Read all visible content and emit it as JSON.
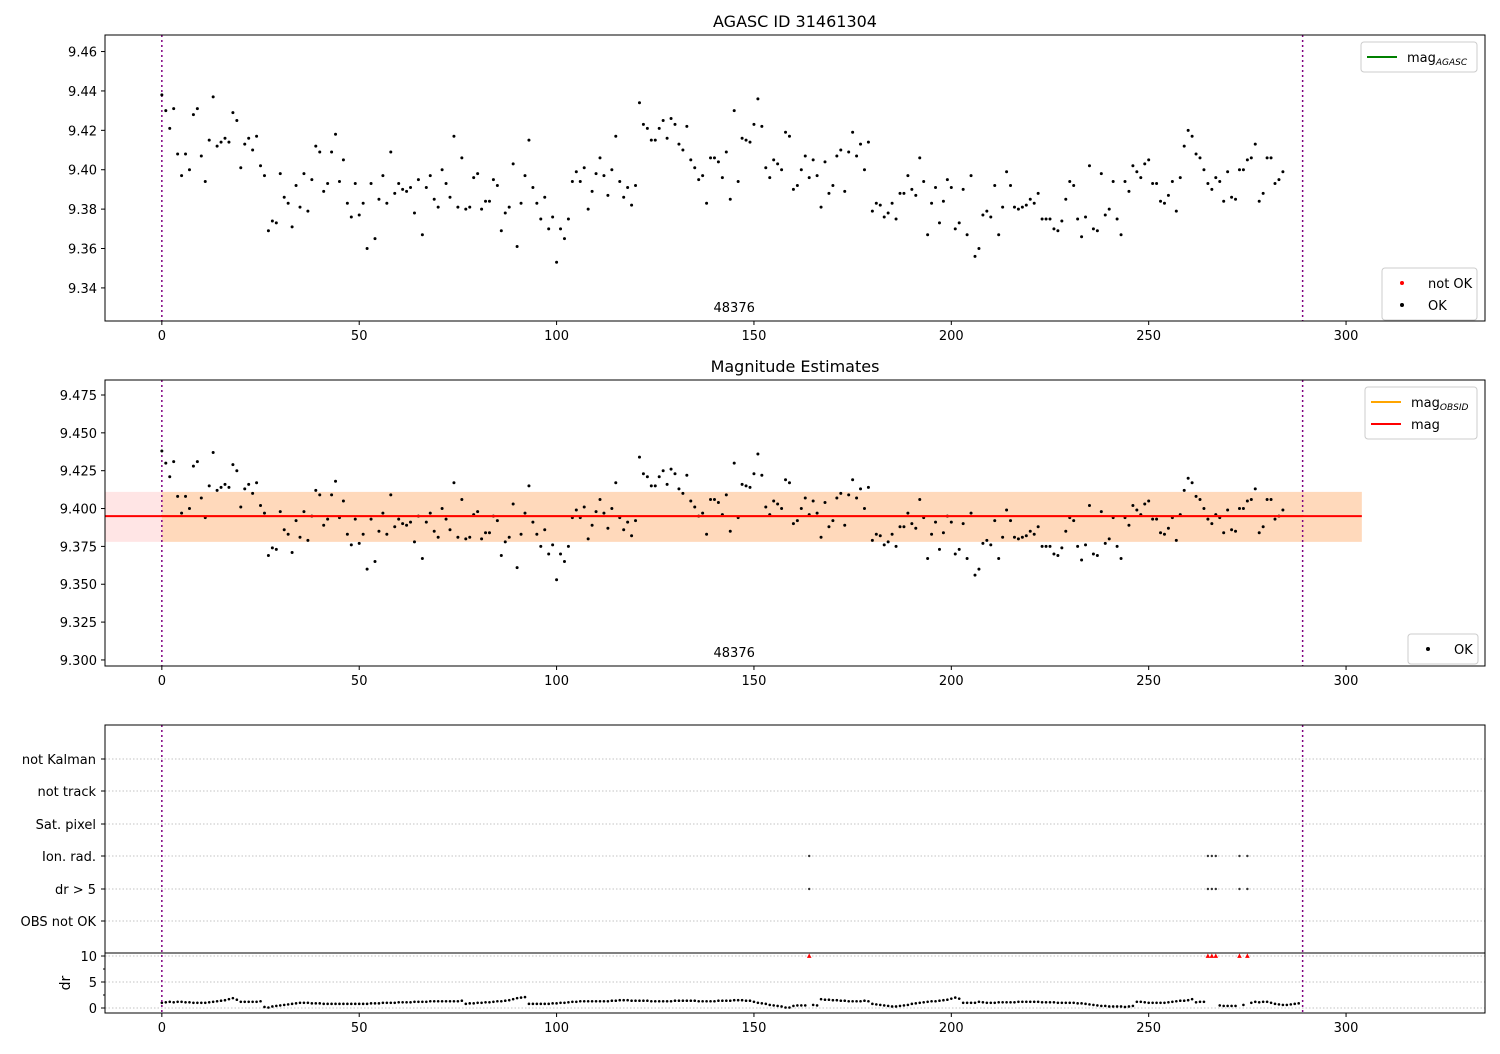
{
  "chart_data": [
    {
      "type": "scatter",
      "title": "AGASC ID 31461304",
      "xlim": [
        -14.4,
        335.2
      ],
      "ylim": [
        9.3232,
        9.4684
      ],
      "xticks": [
        0,
        50,
        100,
        150,
        200,
        250,
        300
      ],
      "yticks": [
        "9.34",
        "9.36",
        "9.38",
        "9.40",
        "9.42",
        "9.44",
        "9.46"
      ],
      "vlines": [
        0,
        289
      ],
      "annotation": "48376",
      "annotation_x": 145,
      "legend_upper": [
        {
          "label": "mag",
          "sub": "AGASC",
          "color": "#008000"
        }
      ],
      "legend_lower": [
        {
          "label": "not OK",
          "color": "#ff0000"
        },
        {
          "label": "OK",
          "color": "#000000"
        }
      ]
    },
    {
      "type": "scatter",
      "title": "Magnitude Estimates",
      "xlim": [
        -14.4,
        335.2
      ],
      "ylim": [
        9.296,
        9.4849
      ],
      "xticks": [
        0,
        50,
        100,
        150,
        200,
        250,
        300
      ],
      "yticks": [
        "9.300",
        "9.325",
        "9.350",
        "9.375",
        "9.400",
        "9.425",
        "9.450",
        "9.475"
      ],
      "mag": 9.395,
      "mag_obsid": 9.395,
      "band": [
        9.378,
        9.411
      ],
      "band_x": [
        -14.4,
        304
      ],
      "obsid_band_x": [
        0,
        304
      ],
      "annotation": "48376",
      "annotation_x": 145,
      "legend_upper": [
        {
          "label": "mag",
          "sub": "OBSID",
          "color": "#ffa500"
        },
        {
          "label": "mag",
          "sub": "",
          "color": "#ff0000"
        }
      ],
      "legend_lower": [
        {
          "label": "OK",
          "color": "#000000"
        }
      ]
    },
    {
      "type": "scatter",
      "categories": [
        "not Kalman",
        "not track",
        "Sat. pixel",
        "Ion. rad.",
        "dr > 5",
        "OBS not OK"
      ],
      "flags": {
        "Ion. rad.": [
          164,
          265,
          266,
          267,
          273,
          275
        ],
        "dr > 5": [
          164,
          265,
          266,
          267,
          273,
          275
        ]
      },
      "ylabel": "dr",
      "ylim": [
        -0.96,
        10.58
      ],
      "yticks": [
        "0",
        "5",
        "10"
      ],
      "xticks": [
        0,
        50,
        100,
        150,
        200,
        250,
        300
      ],
      "dr_clipped_x": [
        164,
        265,
        266,
        267,
        273,
        275
      ],
      "dr": [
        1.0,
        1.1,
        1.2,
        1.1,
        1.2,
        1.2,
        1.1,
        1.1,
        1.0,
        1.0,
        1.0,
        1.0,
        1.1,
        1.2,
        1.3,
        1.4,
        1.5,
        1.7,
        1.9,
        1.6,
        1.2,
        1.2,
        1.2,
        1.2,
        1.2,
        1.3,
        0.2,
        0.1,
        0.3,
        0.4,
        0.5,
        0.6,
        0.7,
        0.8,
        0.9,
        1.0,
        1.0,
        1.0,
        0.9,
        0.9,
        0.9,
        0.8,
        0.8,
        0.8,
        0.8,
        0.8,
        0.8,
        0.8,
        0.8,
        0.8,
        0.8,
        0.8,
        0.8,
        0.9,
        0.9,
        0.9,
        1.0,
        1.0,
        1.0,
        1.0,
        1.1,
        1.1,
        1.1,
        1.1,
        1.2,
        1.2,
        1.2,
        1.2,
        1.3,
        1.3,
        1.3,
        1.3,
        1.3,
        1.3,
        1.3,
        1.3,
        1.4,
        0.8,
        0.9,
        0.9,
        1.0,
        1.0,
        1.1,
        1.1,
        1.2,
        1.3,
        1.3,
        1.4,
        1.5,
        1.7,
        1.9,
        2.0,
        2.1,
        0.8,
        0.8,
        0.8,
        0.8,
        0.8,
        0.8,
        0.9,
        0.9,
        1.0,
        1.0,
        1.1,
        1.2,
        1.2,
        1.3,
        1.3,
        1.3,
        1.3,
        1.3,
        1.3,
        1.3,
        1.3,
        1.4,
        1.4,
        1.5,
        1.5,
        1.5,
        1.4,
        1.4,
        1.4,
        1.4,
        1.4,
        1.3,
        1.3,
        1.3,
        1.3,
        1.3,
        1.3,
        1.4,
        1.4,
        1.4,
        1.4,
        1.4,
        1.4,
        1.3,
        1.3,
        1.3,
        1.3,
        1.3,
        1.4,
        1.4,
        1.4,
        1.4,
        1.5,
        1.5,
        1.5,
        1.4,
        1.4,
        1.2,
        1.0,
        0.9,
        0.8,
        0.6,
        0.5,
        0.4,
        0.3,
        0.1,
        0.1,
        0.4,
        0.5,
        0.5,
        0.5,
        null,
        0.6,
        0.5,
        1.7,
        1.6,
        1.6,
        1.5,
        1.5,
        1.4,
        1.4,
        1.3,
        1.3,
        1.3,
        1.3,
        1.4,
        1.3,
        0.8,
        0.7,
        0.6,
        0.5,
        0.4,
        0.3,
        0.3,
        0.4,
        0.5,
        0.6,
        0.8,
        0.9,
        1.0,
        1.1,
        1.2,
        1.3,
        1.3,
        1.4,
        1.5,
        1.6,
        1.8,
        2.0,
        1.8,
        1.0,
        1.0,
        1.0,
        1.0,
        1.2,
        1.1,
        1.0,
        1.0,
        1.0,
        1.1,
        1.1,
        1.1,
        1.1,
        1.1,
        1.2,
        1.2,
        1.2,
        1.2,
        1.2,
        1.2,
        1.1,
        1.1,
        1.1,
        1.1,
        1.0,
        1.0,
        1.0,
        1.0,
        1.0,
        0.9,
        0.9,
        0.8,
        0.7,
        0.6,
        0.5,
        0.4,
        0.4,
        0.3,
        0.3,
        0.3,
        0.3,
        0.2,
        0.3,
        0.4,
        1.2,
        1.2,
        1.1,
        1.0,
        1.0,
        1.0,
        1.0,
        1.0,
        1.1,
        1.2,
        1.3,
        1.4,
        1.4,
        1.5,
        1.7,
        1.1,
        1.2,
        1.2,
        null,
        null,
        null,
        0.5,
        0.4,
        0.4,
        0.4,
        0.4,
        null,
        0.6,
        null,
        1.0,
        1.2,
        1.1,
        1.2,
        1.2,
        1.0,
        0.8,
        0.7,
        0.6,
        0.6,
        0.7,
        0.8,
        0.9
      ]
    }
  ],
  "mag_values": [
    9.438,
    9.43,
    9.421,
    9.431,
    9.408,
    9.397,
    9.408,
    9.4,
    9.428,
    9.431,
    9.407,
    9.394,
    9.415,
    9.437,
    9.412,
    9.414,
    9.416,
    9.414,
    9.429,
    9.425,
    9.401,
    9.413,
    9.416,
    9.41,
    9.417,
    9.402,
    9.397,
    9.369,
    9.374,
    9.373,
    9.398,
    9.386,
    9.383,
    9.371,
    9.392,
    9.381,
    9.398,
    9.379,
    9.395,
    9.412,
    9.409,
    9.389,
    9.393,
    9.409,
    9.418,
    9.394,
    9.405,
    9.383,
    9.376,
    9.393,
    9.377,
    9.383,
    9.36,
    9.393,
    9.365,
    9.385,
    9.397,
    9.383,
    9.409,
    9.388,
    9.393,
    9.39,
    9.389,
    9.391,
    9.378,
    9.395,
    9.367,
    9.391,
    9.397,
    9.385,
    9.381,
    9.4,
    9.393,
    9.386,
    9.417,
    9.381,
    9.406,
    9.38,
    9.381,
    9.396,
    9.398,
    9.38,
    9.384,
    9.384,
    9.395,
    9.392,
    9.369,
    9.378,
    9.381,
    9.403,
    9.361,
    9.383,
    9.397,
    9.415,
    9.391,
    9.383,
    9.375,
    9.386,
    9.37,
    9.376,
    9.353,
    9.37,
    9.365,
    9.375,
    9.394,
    9.399,
    9.394,
    9.401,
    9.38,
    9.389,
    9.398,
    9.406,
    9.397,
    9.387,
    9.4,
    9.417,
    9.394,
    9.386,
    9.391,
    9.382,
    9.392,
    9.434,
    9.423,
    9.421,
    9.415,
    9.415,
    9.421,
    9.425,
    9.416,
    9.426,
    9.423,
    9.413,
    9.41,
    9.422,
    9.405,
    9.401,
    9.395,
    9.397,
    9.383,
    9.406,
    9.406,
    9.404,
    9.396,
    9.409,
    9.385,
    9.43,
    9.394,
    9.416,
    9.415,
    9.414,
    9.423,
    9.436,
    9.422,
    9.401,
    9.396,
    9.405,
    9.403,
    9.4,
    9.419,
    9.417,
    9.39,
    9.392,
    9.4,
    9.407,
    9.396,
    9.405,
    9.397,
    9.381,
    9.404,
    9.388,
    9.392,
    9.407,
    9.41,
    9.389,
    9.409,
    9.419,
    9.407,
    9.413,
    9.4,
    9.414,
    9.379,
    9.383,
    9.382,
    9.376,
    9.378,
    9.383,
    9.375,
    9.388,
    9.388,
    9.397,
    9.39,
    9.387,
    9.406,
    9.394,
    9.367,
    9.383,
    9.391,
    9.373,
    9.384,
    9.395,
    9.391,
    9.37,
    9.373,
    9.39,
    9.367,
    9.397,
    9.356,
    9.36,
    9.377,
    9.379,
    9.376,
    9.392,
    9.367,
    9.381,
    9.399,
    9.392,
    9.381,
    9.38,
    9.381,
    9.382,
    9.385,
    9.383,
    9.388,
    9.375,
    9.375,
    9.375,
    9.37,
    9.369,
    9.374,
    9.385,
    9.394,
    9.392,
    9.375,
    9.366,
    9.376,
    9.402,
    9.37,
    9.369,
    9.398,
    9.377,
    9.38,
    9.394,
    9.375,
    9.367,
    9.394,
    9.389,
    9.402,
    9.399,
    9.396,
    9.403,
    9.405,
    9.393,
    9.393,
    9.384,
    9.383,
    9.387,
    9.394,
    9.379,
    9.396,
    9.412,
    9.42,
    9.417,
    9.408,
    9.406,
    9.4,
    9.393,
    9.39,
    9.396,
    9.394,
    9.384,
    9.399,
    9.386,
    9.385,
    9.4,
    9.4,
    9.405,
    9.406,
    9.413,
    9.384,
    9.388,
    9.406,
    9.406,
    9.393,
    9.395,
    9.399
  ]
}
